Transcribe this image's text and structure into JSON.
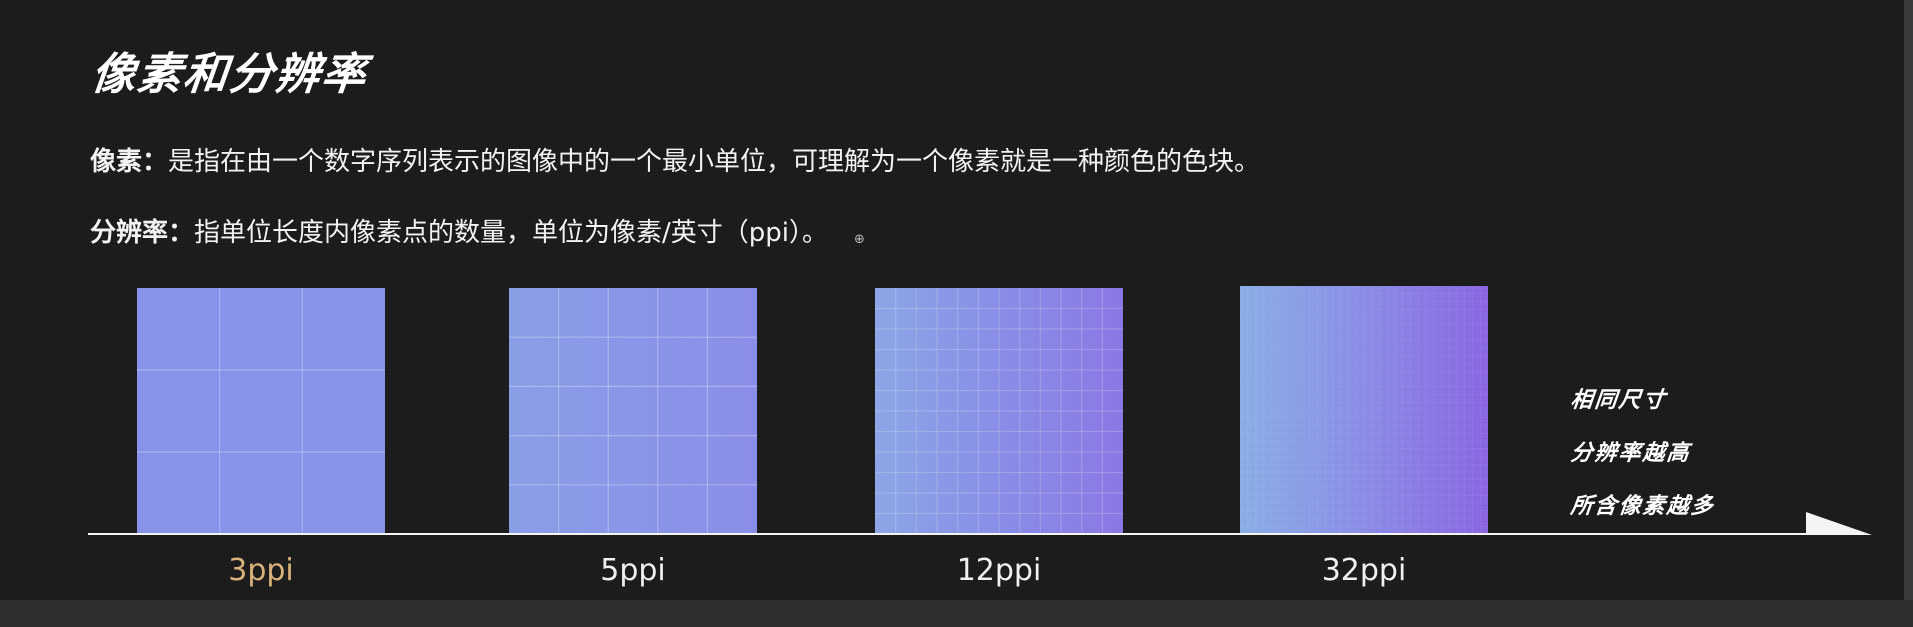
{
  "title": "像素和分辨率",
  "definitions": [
    {
      "term": "像素：",
      "text": "是指在由一个数字序列表示的图像中的一个最小单位，可理解为一个像素就是一种颜色的色块。"
    },
    {
      "term": "分辨率：",
      "text": "指单位长度内像素点的数量，单位为像素/英寸（ppi）。"
    }
  ],
  "squares": [
    {
      "label": "3ppi",
      "grid": 3,
      "active": true
    },
    {
      "label": "5ppi",
      "grid": 5,
      "active": false
    },
    {
      "label": "12ppi",
      "grid": 12,
      "active": false
    },
    {
      "label": "32ppi",
      "grid": 32,
      "active": false
    }
  ],
  "notes": [
    "相同尺寸",
    "分辨率越高",
    "所含像素越多"
  ],
  "colors": {
    "background": "#1b1b1b",
    "square": "#8693e8",
    "active_label": "#d9b27b",
    "text": "#f2f2f2"
  }
}
